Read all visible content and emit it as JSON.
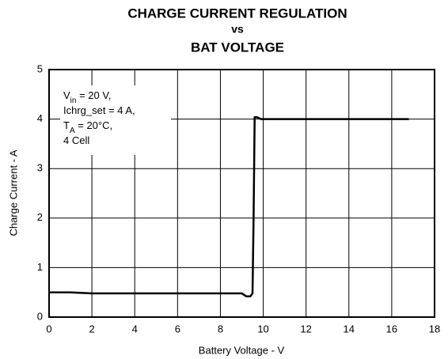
{
  "chart_data": {
    "type": "line",
    "title": [
      "CHARGE CURRENT REGULATION",
      "vs",
      "BAT VOLTAGE"
    ],
    "xlabel": "Battery Voltage - V",
    "ylabel": "Charge Current - A",
    "annotation": [
      [
        "V",
        "in",
        " = 20 V,"
      ],
      [
        "Ichrg_set = 4 A,"
      ],
      [
        "T",
        "A",
        " = 20°C,"
      ],
      [
        "4 Cell"
      ]
    ],
    "x": [
      0,
      1,
      2,
      4,
      6,
      8,
      9,
      9.2,
      9.4,
      9.5,
      9.55,
      9.6,
      9.7,
      9.9,
      12,
      14,
      16.8
    ],
    "series": [
      {
        "name": "Charge Current",
        "color": "#000000",
        "values": [
          0.5,
          0.5,
          0.48,
          0.48,
          0.48,
          0.48,
          0.48,
          0.42,
          0.42,
          0.48,
          2,
          4.04,
          4.04,
          4.0,
          4.0,
          4.0,
          4.0
        ]
      }
    ],
    "xlim": [
      0,
      18
    ],
    "xticks": [
      0,
      2,
      4,
      6,
      8,
      10,
      12,
      14,
      16,
      18
    ],
    "ylim": [
      0,
      5
    ],
    "yticks": [
      0,
      1,
      2,
      3,
      4,
      5
    ],
    "grid": true
  }
}
